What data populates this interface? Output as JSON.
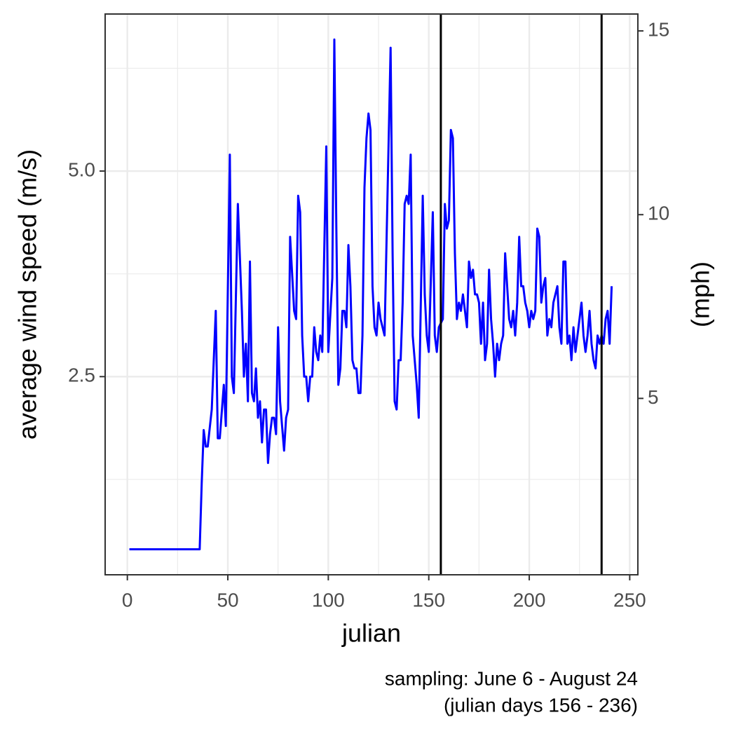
{
  "chart_data": {
    "type": "line",
    "x_label": "julian",
    "y_label": "average wind speed (m/s)",
    "y2_label": "(mph)",
    "caption": [
      "sampling: June 6 - August 24",
      "(julian days 156 - 236)"
    ],
    "color": "#0000ff",
    "grid": true,
    "vlines": [
      156,
      236
    ],
    "vline_color": "#000000",
    "x": [
      1,
      36,
      37,
      38,
      39,
      40,
      42,
      44,
      45,
      46,
      48,
      49,
      51,
      52,
      53,
      55,
      57,
      58,
      59,
      60,
      61,
      62,
      63,
      64,
      65,
      66,
      67,
      68,
      69,
      70,
      71,
      72,
      73,
      74,
      75,
      76,
      78,
      79,
      80,
      81,
      83,
      84,
      85,
      86,
      87,
      88,
      89,
      90,
      91,
      92,
      93,
      94,
      95,
      96,
      97,
      99,
      100,
      102,
      103,
      104,
      105,
      106,
      107,
      108,
      109,
      110,
      111,
      112,
      113,
      114,
      115,
      116,
      117,
      118,
      119,
      120,
      121,
      122,
      123,
      124,
      125,
      126,
      128,
      131,
      132,
      133,
      134,
      135,
      136,
      137,
      138,
      139,
      140,
      141,
      142,
      144,
      145,
      147,
      148,
      149,
      150,
      152,
      153,
      154,
      155,
      157,
      158,
      159,
      160,
      161,
      162,
      163,
      164,
      165,
      166,
      167,
      168,
      169,
      170,
      171,
      172,
      173,
      174,
      175,
      176,
      177,
      178,
      179,
      180,
      181,
      182,
      183,
      184,
      185,
      186,
      187,
      188,
      189,
      190,
      191,
      192,
      193,
      194,
      195,
      196,
      197,
      198,
      199,
      200,
      201,
      202,
      203,
      204,
      205,
      206,
      207,
      208,
      209,
      210,
      211,
      212,
      213,
      214,
      215,
      216,
      217,
      218,
      219,
      220,
      221,
      222,
      223,
      224,
      225,
      226,
      227,
      228,
      229,
      230,
      231,
      232,
      233,
      234,
      235,
      236,
      237,
      238,
      239,
      240,
      241
    ],
    "values": [
      0.4,
      0.4,
      1.2,
      1.85,
      1.65,
      1.65,
      2.1,
      3.3,
      1.75,
      1.75,
      2.4,
      1.9,
      5.2,
      2.5,
      2.3,
      4.6,
      3.3,
      2.5,
      2.9,
      2.2,
      3.9,
      2.3,
      2.2,
      2.6,
      2.0,
      2.2,
      1.7,
      2.1,
      2.1,
      1.45,
      1.8,
      2.0,
      2.0,
      1.8,
      3.1,
      2.2,
      1.6,
      2.0,
      2.1,
      4.2,
      3.3,
      3.2,
      4.7,
      4.5,
      3.0,
      2.5,
      2.5,
      2.2,
      2.5,
      2.5,
      3.1,
      2.8,
      2.7,
      3.0,
      2.8,
      5.3,
      2.8,
      3.7,
      6.6,
      4.3,
      2.4,
      2.6,
      3.3,
      3.3,
      3.1,
      4.1,
      3.6,
      2.7,
      2.6,
      2.6,
      2.3,
      2.3,
      3.0,
      4.8,
      5.4,
      5.7,
      5.5,
      3.6,
      3.1,
      3.0,
      3.4,
      3.2,
      3.0,
      6.5,
      4.0,
      2.2,
      2.1,
      2.7,
      2.7,
      3.4,
      4.6,
      4.7,
      4.6,
      5.2,
      3.0,
      2.4,
      2.0,
      4.7,
      3.5,
      3.0,
      2.8,
      4.5,
      3.0,
      2.8,
      3.1,
      3.2,
      4.6,
      4.3,
      4.4,
      5.5,
      5.4,
      4.0,
      3.2,
      3.4,
      3.3,
      3.5,
      3.3,
      3.1,
      3.9,
      3.7,
      3.8,
      3.5,
      3.5,
      3.4,
      2.9,
      3.4,
      2.7,
      2.9,
      3.8,
      3.2,
      2.9,
      2.5,
      2.9,
      2.7,
      2.9,
      3.0,
      4.0,
      3.6,
      3.2,
      3.1,
      3.3,
      3.0,
      3.4,
      4.2,
      3.6,
      3.6,
      3.4,
      3.3,
      3.1,
      3.3,
      3.2,
      3.3,
      4.3,
      4.2,
      3.4,
      3.6,
      3.7,
      3.0,
      3.2,
      3.1,
      3.4,
      3.5,
      3.6,
      3.1,
      2.9,
      3.9,
      3.9,
      2.9,
      3.0,
      2.7,
      3.1,
      2.8,
      3.0,
      3.2,
      3.4,
      3.0,
      2.8,
      3.0,
      3.3,
      2.9,
      2.7,
      2.6,
      3.0,
      2.9,
      3.0,
      2.9,
      3.2,
      3.3,
      2.9,
      3.6
    ],
    "xlim": [
      -11.05,
      254.05
    ],
    "xticks": [
      0,
      50,
      100,
      150,
      200,
      250
    ],
    "ylim": [
      0.09,
      6.91
    ],
    "yticks": [
      2.5,
      {
        "value": 5,
        "label": "5.0"
      }
    ],
    "y2lim": [
      0.2,
      15.46
    ],
    "y2ticks": [
      5,
      10,
      15
    ]
  }
}
